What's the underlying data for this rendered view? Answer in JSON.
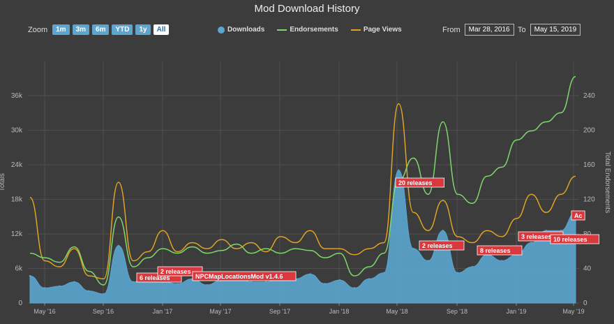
{
  "title": "Mod Download History",
  "zoom": {
    "label": "Zoom",
    "buttons": [
      {
        "label": "1m",
        "active": false
      },
      {
        "label": "3m",
        "active": false
      },
      {
        "label": "6m",
        "active": false
      },
      {
        "label": "YTD",
        "active": false
      },
      {
        "label": "1y",
        "active": false
      },
      {
        "label": "All",
        "active": true
      }
    ]
  },
  "legend": {
    "downloads": "Downloads",
    "endorsements": "Endorsements",
    "page_views": "Page Views"
  },
  "range": {
    "from_label": "From",
    "from_value": "Mar 28, 2016",
    "to_label": "To",
    "to_value": "May 15, 2019"
  },
  "colors": {
    "downloads": "#5ba5cf",
    "endorsements": "#7ed86b",
    "page_views": "#e0a323",
    "flag": "#d9383e",
    "background": "#3c3c3c"
  },
  "chart_data": {
    "type": "area",
    "title": "Mod Download History",
    "ylabel": "Totals",
    "ylabel_right": "Total Endorsements",
    "ylim": [
      0,
      40000
    ],
    "ylim_right": [
      0,
      266.67
    ],
    "yticks_left": [
      "0",
      "6k",
      "12k",
      "18k",
      "24k",
      "30k",
      "36k"
    ],
    "yticks_right": [
      "0",
      "40",
      "80",
      "120",
      "160",
      "200",
      "240"
    ],
    "x_ticks": [
      "May '16",
      "Sep '16",
      "Jan '17",
      "May '17",
      "Sep '17",
      "Jan '18",
      "May '18",
      "Sep '18",
      "Jan '19",
      "May '19"
    ],
    "grid": true,
    "x": [
      "2016-04",
      "2016-05",
      "2016-06",
      "2016-07",
      "2016-08",
      "2016-09",
      "2016-10",
      "2016-11",
      "2016-12",
      "2017-01",
      "2017-02",
      "2017-03",
      "2017-04",
      "2017-05",
      "2017-06",
      "2017-07",
      "2017-08",
      "2017-09",
      "2017-10",
      "2017-11",
      "2017-12",
      "2018-01",
      "2018-02",
      "2018-03",
      "2018-04",
      "2018-05",
      "2018-06",
      "2018-07",
      "2018-08",
      "2018-09",
      "2018-10",
      "2018-11",
      "2018-12",
      "2019-01",
      "2019-02",
      "2019-03",
      "2019-04",
      "2019-05"
    ],
    "series": [
      {
        "name": "Downloads",
        "axis": "left",
        "values": [
          4500,
          2500,
          2800,
          3500,
          2000,
          1500,
          9500,
          3500,
          4500,
          3500,
          3200,
          4000,
          3000,
          3800,
          4500,
          3500,
          3500,
          4200,
          4000,
          4800,
          3200,
          3800,
          2500,
          4000,
          5000,
          22000,
          9000,
          7000,
          12000,
          5000,
          6000,
          8000,
          7000,
          8000,
          10000,
          12000,
          12000,
          15000
        ]
      },
      {
        "name": "Endorsements",
        "axis": "right",
        "values": [
          55,
          50,
          45,
          62,
          35,
          20,
          95,
          40,
          50,
          60,
          55,
          62,
          55,
          58,
          65,
          55,
          60,
          55,
          60,
          58,
          50,
          55,
          30,
          40,
          55,
          135,
          160,
          120,
          200,
          120,
          110,
          140,
          150,
          180,
          190,
          200,
          210,
          250
        ]
      },
      {
        "name": "Page Views",
        "axis": "left",
        "values": [
          17500,
          7000,
          6000,
          9000,
          4500,
          4000,
          20000,
          7000,
          8500,
          12000,
          8500,
          10000,
          9000,
          10500,
          9000,
          10000,
          8500,
          11000,
          10000,
          12000,
          9000,
          9000,
          8000,
          9000,
          10000,
          33000,
          15000,
          12000,
          17000,
          11000,
          10000,
          12000,
          11000,
          14000,
          18000,
          15000,
          18000,
          21000
        ]
      }
    ],
    "annotations": [
      "6 releases",
      "2 releases",
      "NPCMapLocationsMod v1.4.6",
      "20 releases",
      "2 releases",
      "8 releases",
      "3 releases",
      "10 releases",
      "Ac"
    ]
  }
}
